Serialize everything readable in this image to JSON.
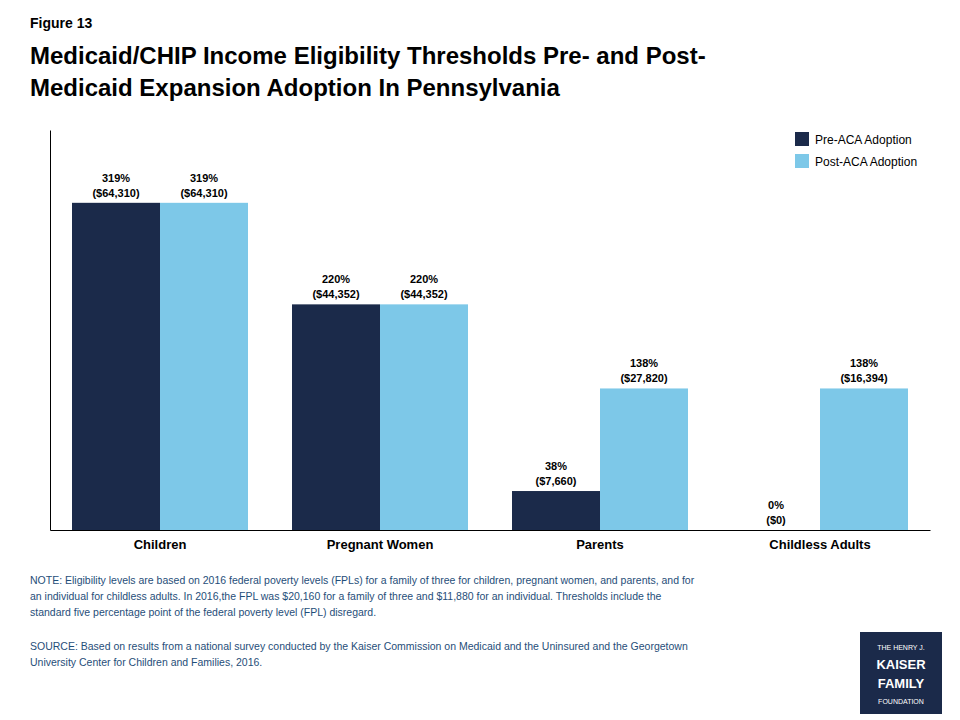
{
  "chart_data": {
    "type": "bar",
    "title": "Medicaid/CHIP Income Eligibility Thresholds Pre- and Post-\nMedicaid Expansion Adoption In Pennsylvania",
    "categories": [
      "Children",
      "Pregnant Women",
      "Parents",
      "Childless Adults"
    ],
    "series": [
      {
        "name": "Pre-ACA Adoption",
        "color": "#1B2A4A",
        "values": [
          319,
          220,
          38,
          0
        ],
        "value_labels": [
          "319%\n($64,310)",
          "220%\n($44,352)",
          "38%\n($7,660)",
          "0%\n($0)"
        ]
      },
      {
        "name": "Post-ACA Adoption",
        "color": "#7DC8E8",
        "values": [
          319,
          220,
          138,
          138
        ],
        "value_labels": [
          "319%\n($64,310)",
          "220%\n($44,352)",
          "138%\n($27,820)",
          "138%\n($16,394)"
        ]
      }
    ],
    "ylim": [
      0,
      390
    ],
    "grid": false,
    "legend": "upper right",
    "data_labels": true,
    "tick_labels": "x",
    "annotations": [
      "Figure 13",
      "NOTE: Eligibility levels are based on 2016 federal poverty levels (FPLs) for a family of three for children, pregnant women, and parents, and for\nan individual for childless adults. In 2016,the FPL was $20,160 for a family of three and $11,880 for an individual. Thresholds include the\nstandard five percentage point of the federal poverty level (FPL) disregard.",
      "SOURCE: Based on  results from a national survey conducted by the Kaiser Commission on Medicaid and the Uninsured and the Georgetown\nUniversity Center for Children and Families, 2016.",
      "THE HENRY J.",
      "KAISER",
      "FAMILY",
      "FOUNDATION"
    ]
  }
}
